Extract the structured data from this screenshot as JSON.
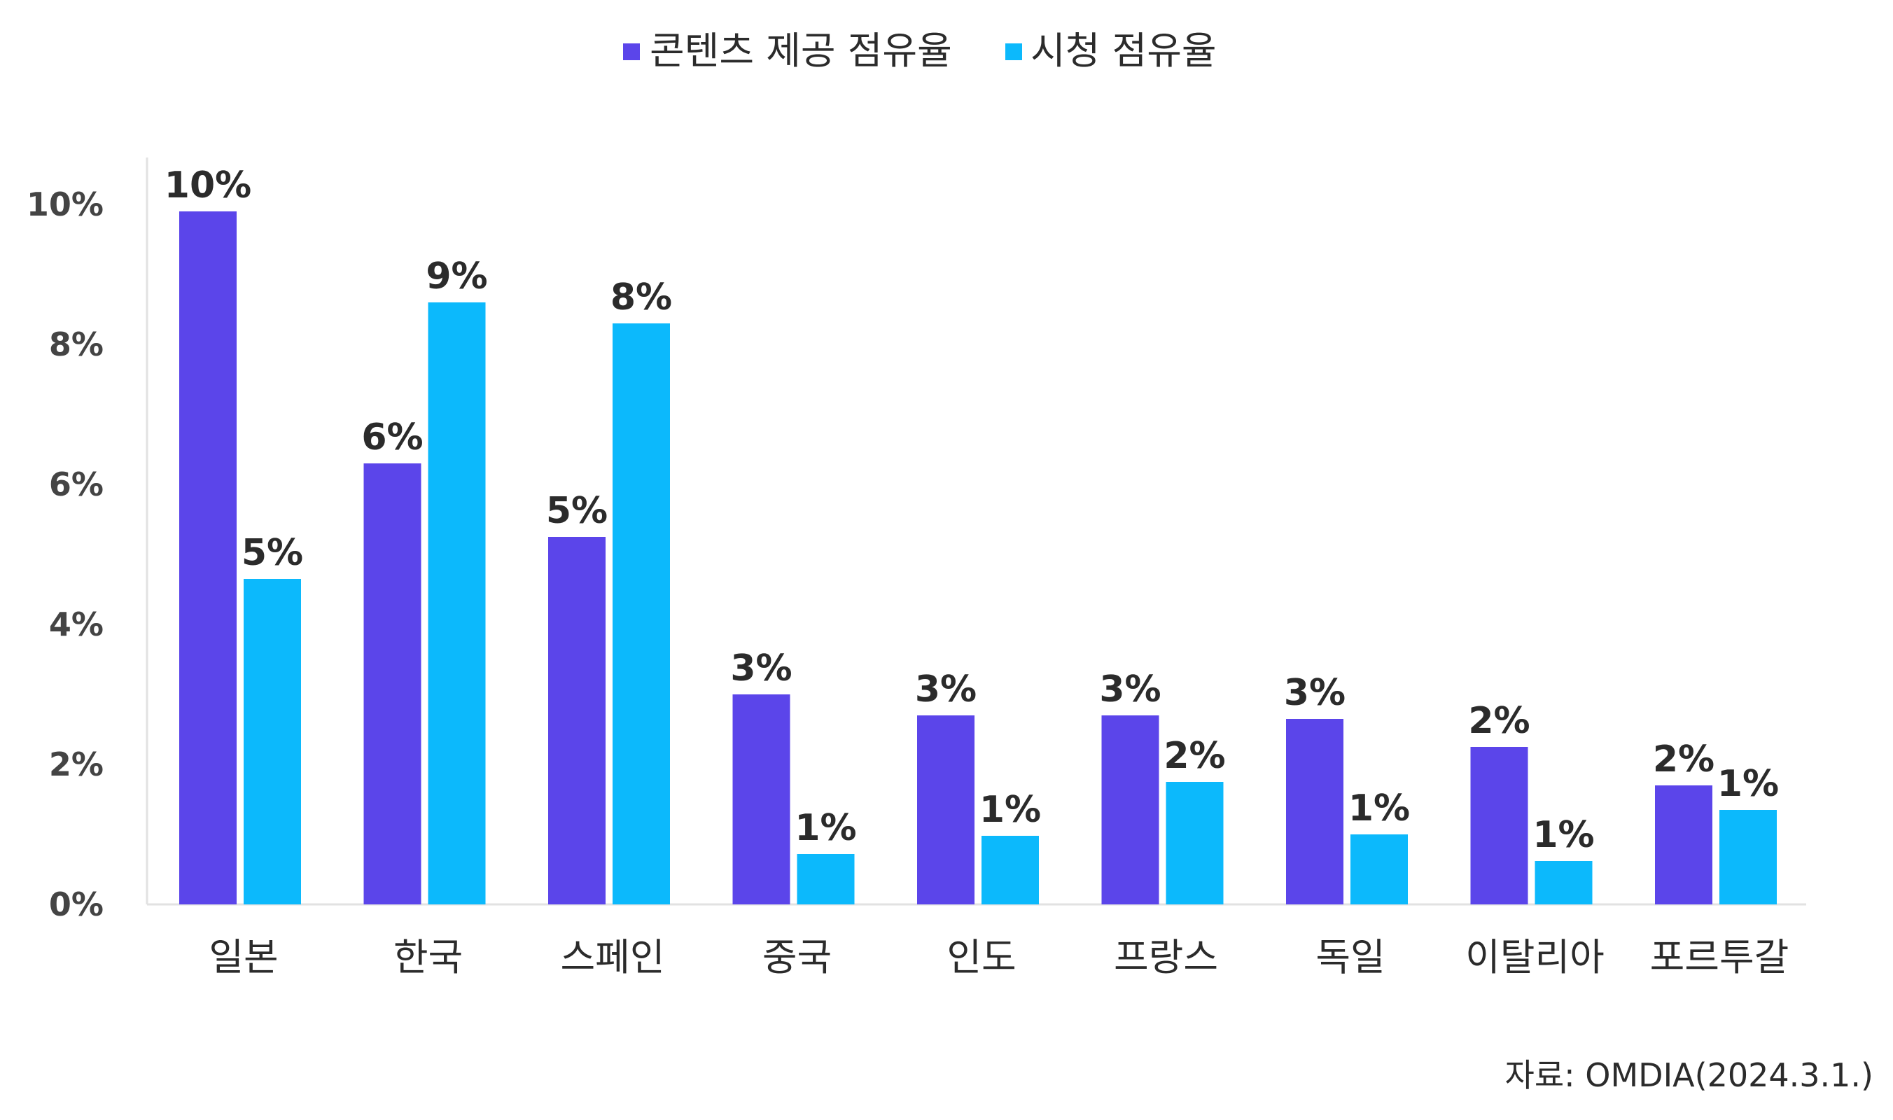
{
  "chart_data": {
    "type": "bar",
    "categories": [
      "일본",
      "한국",
      "스페인",
      "중국",
      "인도",
      "프랑스",
      "독일",
      "이탈리아",
      "포르투갈"
    ],
    "series": [
      {
        "name": "콘텐츠 제공 점유율",
        "color": "#5b45ea",
        "values": [
          9.9,
          6.3,
          5.25,
          3.0,
          2.7,
          2.7,
          2.65,
          2.25,
          1.7
        ],
        "labels": [
          "10%",
          "6%",
          "5%",
          "3%",
          "3%",
          "3%",
          "3%",
          "2%",
          "2%"
        ]
      },
      {
        "name": "시청 점유율",
        "color": "#0cb9fc",
        "values": [
          4.65,
          8.6,
          8.3,
          0.72,
          0.98,
          1.75,
          1.0,
          0.62,
          1.35
        ],
        "labels": [
          "5%",
          "9%",
          "8%",
          "1%",
          "1%",
          "2%",
          "1%",
          "1%",
          "1%"
        ]
      }
    ],
    "yticks": [
      "0%",
      "2%",
      "4%",
      "6%",
      "8%",
      "10%"
    ],
    "ylim": [
      0,
      10
    ],
    "legend": "top-center",
    "grid": false
  },
  "source": "자료: OMDIA(2024.3.1.)"
}
